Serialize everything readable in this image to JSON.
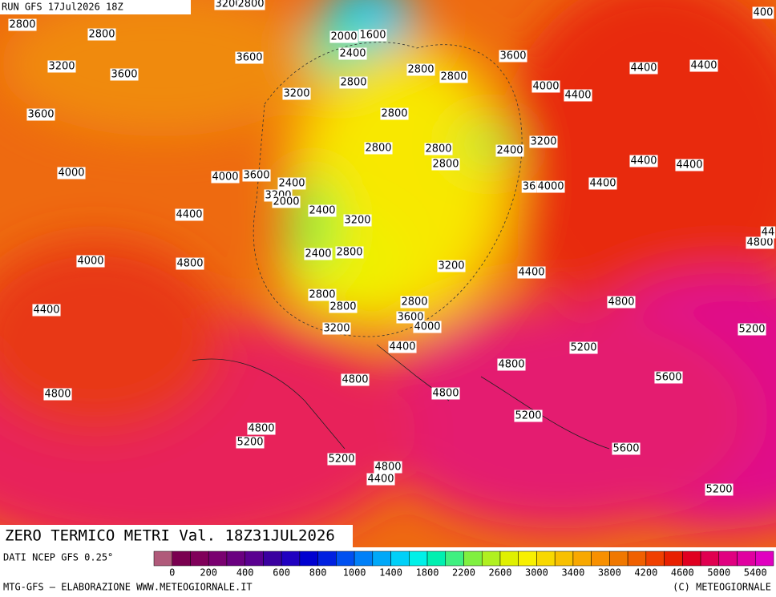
{
  "header": {
    "run": "RUN GFS 17Jul2026 18Z"
  },
  "map": {
    "title": "ZERO TERMICO METRI Val. 18Z31JUL2026",
    "contour_labels": [
      "2800",
      "2800",
      "3200",
      "3600",
      "3600",
      "4000",
      "4400",
      "4000",
      "4800",
      "4400",
      "4800",
      "4800",
      "5200",
      "5200",
      "4800",
      "4400",
      "3600",
      "3200",
      "2000",
      "1600",
      "2400",
      "2800",
      "2800",
      "2800",
      "3600",
      "4000",
      "4400",
      "4400",
      "4400",
      "2800",
      "2800",
      "2800",
      "2800",
      "2400",
      "3200",
      "4000",
      "3600",
      "2400",
      "3200",
      "2000",
      "2400",
      "3200",
      "36",
      "4000",
      "4400",
      "4400",
      "4400",
      "2400",
      "2800",
      "3200",
      "4400",
      "2800",
      "2800",
      "2800",
      "3600",
      "4000",
      "3200",
      "4400",
      "4800",
      "4800",
      "4800",
      "5200",
      "4800",
      "5200",
      "4800",
      "44",
      "400",
      "5600",
      "5200",
      "5600",
      "5200",
      "3200",
      "2800"
    ]
  },
  "colorbar": {
    "colors": [
      "#b05a7a",
      "#7a0050",
      "#80005a",
      "#7a0070",
      "#6a0080",
      "#5a0090",
      "#3a00a0",
      "#2000c0",
      "#0000d0",
      "#0020e0",
      "#0050f0",
      "#0080f8",
      "#00a8f8",
      "#00d0f8",
      "#00f0e8",
      "#00f0b0",
      "#40f080",
      "#80f040",
      "#b0f020",
      "#e0f000",
      "#f8f000",
      "#f8d800",
      "#f8c000",
      "#f8a800",
      "#f89000",
      "#f07800",
      "#f06000",
      "#f04000",
      "#e82000",
      "#e00020",
      "#e00050",
      "#e00080",
      "#e000a0",
      "#e000c0"
    ],
    "labels": [
      0,
      200,
      400,
      600,
      800,
      1000,
      1400,
      1800,
      2200,
      2600,
      3000,
      3400,
      3800,
      4200,
      4600,
      5000,
      5400
    ]
  },
  "footer": {
    "source": "DATI NCEP GFS 0.25°",
    "credit": "MTG-GFS — ELABORAZIONE WWW.METEOGIORNALE.IT",
    "copyright": "(C) METEOGIORNALE"
  }
}
